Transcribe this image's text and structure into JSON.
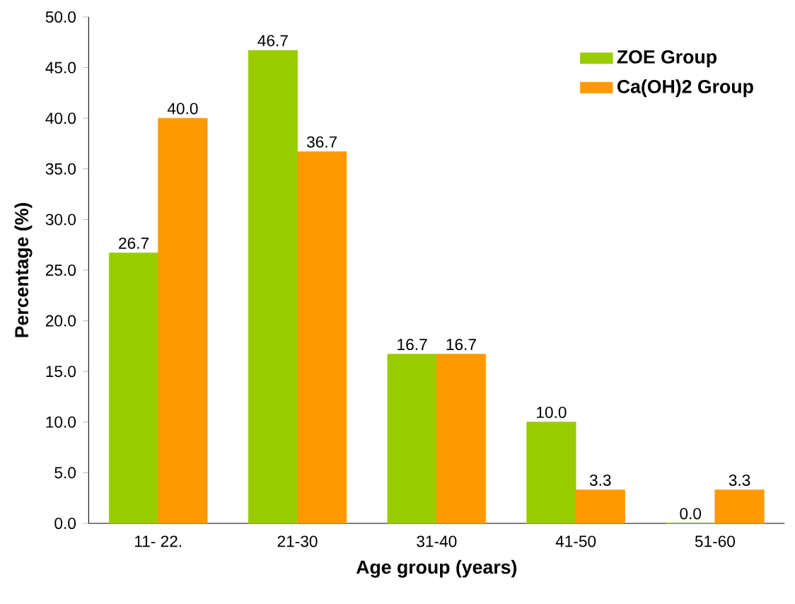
{
  "chart_data": {
    "type": "bar",
    "xlabel": "Age group (years)",
    "ylabel": "Percentage (%)",
    "categories": [
      "11- 22.",
      "21-30",
      "31-40",
      "41-50",
      "51-60"
    ],
    "series": [
      {
        "name": "ZOE Group",
        "color": "#99cc00",
        "values": [
          26.7,
          46.7,
          16.7,
          10.0,
          0.0
        ],
        "value_labels": [
          "26.7",
          "46.7",
          "16.7",
          "10.0",
          "0.0"
        ]
      },
      {
        "name": "Ca(OH)2 Group",
        "color": "#ff9900",
        "values": [
          40.0,
          36.7,
          16.7,
          3.3,
          3.3
        ],
        "value_labels": [
          "40.0",
          "36.7",
          "16.7",
          "3.3",
          "3.3"
        ]
      }
    ],
    "ylim": [
      0,
      50
    ],
    "yticks": [
      {
        "value": 0,
        "label": "0.0"
      },
      {
        "value": 5,
        "label": "5.0"
      },
      {
        "value": 10,
        "label": "10.0"
      },
      {
        "value": 15,
        "label": "15.0"
      },
      {
        "value": 20,
        "label": "20.0"
      },
      {
        "value": 25,
        "label": "25.0"
      },
      {
        "value": 30,
        "label": "30.0"
      },
      {
        "value": 35,
        "label": "35.0"
      },
      {
        "value": 40,
        "label": "40.0"
      },
      {
        "value": 45,
        "label": "45.0"
      },
      {
        "value": 50,
        "label": "50.0"
      }
    ],
    "legend": "top right"
  }
}
